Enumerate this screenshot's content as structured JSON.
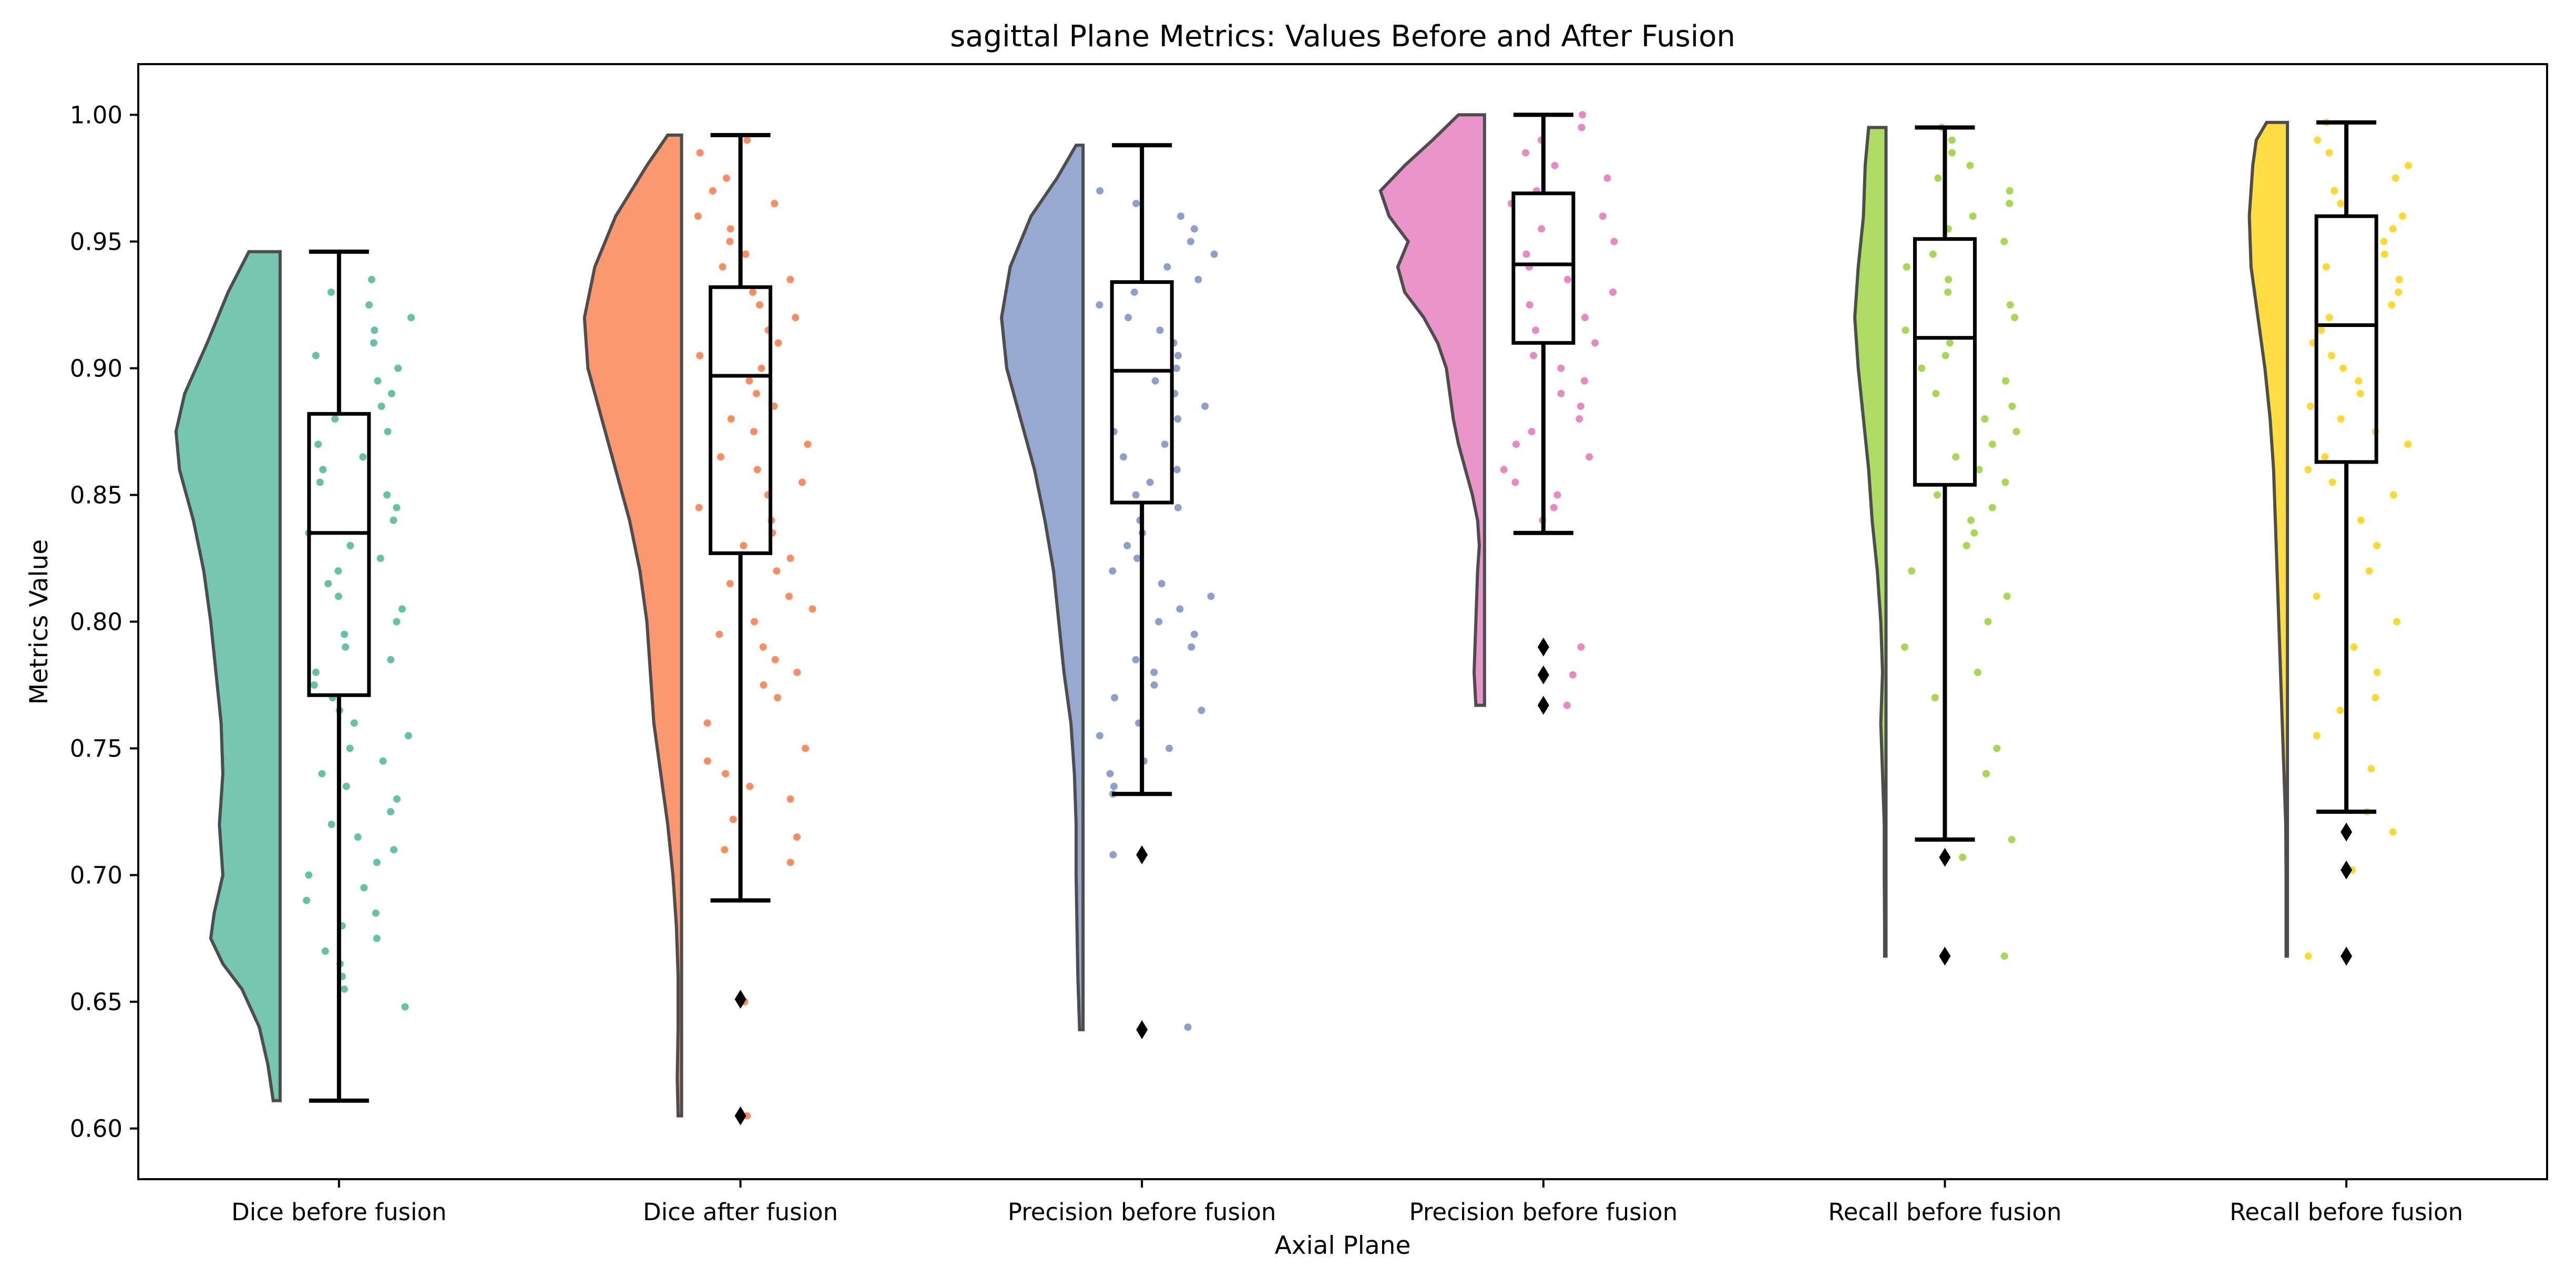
{
  "chart_data": {
    "type": "raincloud",
    "title": "sagittal Plane Metrics: Values Before and After Fusion",
    "xlabel": "Axial Plane",
    "ylabel": "Metrics Value",
    "ylim": [
      0.58,
      1.02
    ],
    "yticks": [
      0.6,
      0.65,
      0.7,
      0.75,
      0.8,
      0.85,
      0.9,
      0.95,
      1.0
    ],
    "grid": false,
    "categories": [
      "Dice before fusion",
      "Dice after fusion",
      "Precision before fusion",
      "Precision before fusion",
      "Recall before fusion",
      "Recall before fusion"
    ],
    "groups": [
      {
        "label": "Dice before fusion",
        "color": "#66c2a5",
        "min": 0.611,
        "q1": 0.771,
        "median": 0.835,
        "q3": 0.882,
        "max": 0.946,
        "outliers": [],
        "violin": [
          [
            0.946,
            0.18
          ],
          [
            0.93,
            0.3
          ],
          [
            0.91,
            0.42
          ],
          [
            0.89,
            0.55
          ],
          [
            0.875,
            0.6
          ],
          [
            0.86,
            0.58
          ],
          [
            0.84,
            0.5
          ],
          [
            0.82,
            0.44
          ],
          [
            0.8,
            0.4
          ],
          [
            0.78,
            0.37
          ],
          [
            0.76,
            0.34
          ],
          [
            0.74,
            0.33
          ],
          [
            0.72,
            0.35
          ],
          [
            0.7,
            0.33
          ],
          [
            0.685,
            0.38
          ],
          [
            0.675,
            0.4
          ],
          [
            0.665,
            0.33
          ],
          [
            0.655,
            0.22
          ],
          [
            0.64,
            0.12
          ],
          [
            0.625,
            0.07
          ],
          [
            0.611,
            0.04
          ]
        ],
        "points": [
          0.935,
          0.93,
          0.925,
          0.92,
          0.915,
          0.91,
          0.905,
          0.9,
          0.895,
          0.89,
          0.885,
          0.88,
          0.875,
          0.87,
          0.865,
          0.86,
          0.855,
          0.85,
          0.845,
          0.84,
          0.835,
          0.83,
          0.825,
          0.82,
          0.815,
          0.81,
          0.805,
          0.8,
          0.795,
          0.79,
          0.785,
          0.78,
          0.775,
          0.77,
          0.765,
          0.76,
          0.755,
          0.75,
          0.745,
          0.74,
          0.735,
          0.73,
          0.725,
          0.72,
          0.715,
          0.71,
          0.705,
          0.7,
          0.695,
          0.69,
          0.685,
          0.68,
          0.675,
          0.67,
          0.665,
          0.66,
          0.655,
          0.648
        ]
      },
      {
        "label": "Dice after fusion",
        "color": "#fc8d62",
        "min": 0.69,
        "q1": 0.827,
        "median": 0.897,
        "q3": 0.932,
        "max": 0.992,
        "outliers": [
          0.651,
          0.605
        ],
        "violin": [
          [
            0.992,
            0.08
          ],
          [
            0.98,
            0.2
          ],
          [
            0.96,
            0.38
          ],
          [
            0.94,
            0.5
          ],
          [
            0.92,
            0.56
          ],
          [
            0.9,
            0.54
          ],
          [
            0.88,
            0.46
          ],
          [
            0.86,
            0.38
          ],
          [
            0.84,
            0.3
          ],
          [
            0.82,
            0.24
          ],
          [
            0.8,
            0.2
          ],
          [
            0.78,
            0.18
          ],
          [
            0.76,
            0.16
          ],
          [
            0.74,
            0.12
          ],
          [
            0.72,
            0.08
          ],
          [
            0.7,
            0.05
          ],
          [
            0.68,
            0.03
          ],
          [
            0.66,
            0.02
          ],
          [
            0.64,
            0.02
          ],
          [
            0.62,
            0.025
          ],
          [
            0.605,
            0.02
          ]
        ],
        "points": [
          0.99,
          0.985,
          0.975,
          0.97,
          0.965,
          0.96,
          0.955,
          0.95,
          0.945,
          0.94,
          0.935,
          0.93,
          0.925,
          0.92,
          0.915,
          0.91,
          0.905,
          0.9,
          0.895,
          0.89,
          0.885,
          0.88,
          0.875,
          0.87,
          0.865,
          0.86,
          0.855,
          0.85,
          0.845,
          0.84,
          0.835,
          0.83,
          0.825,
          0.82,
          0.815,
          0.81,
          0.805,
          0.8,
          0.795,
          0.79,
          0.785,
          0.78,
          0.775,
          0.77,
          0.76,
          0.75,
          0.745,
          0.74,
          0.735,
          0.73,
          0.722,
          0.715,
          0.71,
          0.705,
          0.65,
          0.605
        ]
      },
      {
        "label": "Precision before fusion",
        "color": "#8da0cb",
        "min": 0.732,
        "q1": 0.847,
        "median": 0.899,
        "q3": 0.934,
        "max": 0.988,
        "outliers": [
          0.708,
          0.639
        ],
        "violin": [
          [
            0.988,
            0.04
          ],
          [
            0.975,
            0.15
          ],
          [
            0.96,
            0.3
          ],
          [
            0.94,
            0.42
          ],
          [
            0.92,
            0.47
          ],
          [
            0.9,
            0.44
          ],
          [
            0.88,
            0.36
          ],
          [
            0.86,
            0.28
          ],
          [
            0.84,
            0.22
          ],
          [
            0.82,
            0.17
          ],
          [
            0.8,
            0.14
          ],
          [
            0.78,
            0.11
          ],
          [
            0.76,
            0.07
          ],
          [
            0.74,
            0.05
          ],
          [
            0.72,
            0.04
          ],
          [
            0.7,
            0.04
          ],
          [
            0.68,
            0.035
          ],
          [
            0.66,
            0.03
          ],
          [
            0.639,
            0.02
          ]
        ],
        "points": [
          0.97,
          0.965,
          0.96,
          0.955,
          0.95,
          0.945,
          0.94,
          0.935,
          0.93,
          0.925,
          0.92,
          0.915,
          0.91,
          0.905,
          0.9,
          0.895,
          0.89,
          0.885,
          0.88,
          0.875,
          0.87,
          0.865,
          0.86,
          0.855,
          0.85,
          0.845,
          0.84,
          0.835,
          0.83,
          0.825,
          0.82,
          0.815,
          0.81,
          0.805,
          0.8,
          0.795,
          0.79,
          0.785,
          0.78,
          0.775,
          0.77,
          0.765,
          0.76,
          0.755,
          0.75,
          0.745,
          0.74,
          0.735,
          0.732,
          0.708,
          0.64
        ]
      },
      {
        "label": "Precision before fusion",
        "color": "#e78ac3",
        "min": 0.835,
        "q1": 0.91,
        "median": 0.941,
        "q3": 0.969,
        "max": 1.0,
        "outliers": [
          0.79,
          0.779,
          0.767
        ],
        "violin": [
          [
            1.0,
            0.15
          ],
          [
            0.99,
            0.3
          ],
          [
            0.98,
            0.46
          ],
          [
            0.97,
            0.6
          ],
          [
            0.96,
            0.55
          ],
          [
            0.95,
            0.44
          ],
          [
            0.94,
            0.5
          ],
          [
            0.93,
            0.46
          ],
          [
            0.92,
            0.35
          ],
          [
            0.91,
            0.27
          ],
          [
            0.9,
            0.22
          ],
          [
            0.89,
            0.2
          ],
          [
            0.88,
            0.18
          ],
          [
            0.87,
            0.15
          ],
          [
            0.86,
            0.11
          ],
          [
            0.85,
            0.07
          ],
          [
            0.84,
            0.04
          ],
          [
            0.83,
            0.03
          ],
          [
            0.82,
            0.04
          ],
          [
            0.8,
            0.05
          ],
          [
            0.78,
            0.06
          ],
          [
            0.767,
            0.05
          ]
        ],
        "points": [
          1.0,
          0.995,
          0.99,
          0.985,
          0.98,
          0.975,
          0.97,
          0.965,
          0.96,
          0.955,
          0.95,
          0.945,
          0.94,
          0.935,
          0.93,
          0.925,
          0.92,
          0.915,
          0.91,
          0.905,
          0.9,
          0.895,
          0.89,
          0.885,
          0.88,
          0.875,
          0.87,
          0.865,
          0.86,
          0.855,
          0.85,
          0.845,
          0.84,
          0.79,
          0.779,
          0.767
        ]
      },
      {
        "label": "Recall before fusion",
        "color": "#a6d854",
        "min": 0.714,
        "q1": 0.854,
        "median": 0.912,
        "q3": 0.951,
        "max": 0.995,
        "outliers": [
          0.707,
          0.668
        ],
        "violin": [
          [
            0.995,
            0.1
          ],
          [
            0.98,
            0.12
          ],
          [
            0.96,
            0.13
          ],
          [
            0.94,
            0.16
          ],
          [
            0.92,
            0.18
          ],
          [
            0.9,
            0.16
          ],
          [
            0.88,
            0.13
          ],
          [
            0.86,
            0.1
          ],
          [
            0.84,
            0.08
          ],
          [
            0.82,
            0.05
          ],
          [
            0.8,
            0.03
          ],
          [
            0.78,
            0.02
          ],
          [
            0.76,
            0.03
          ],
          [
            0.74,
            0.02
          ],
          [
            0.72,
            0.01
          ],
          [
            0.7,
            0.01
          ],
          [
            0.68,
            0.008
          ],
          [
            0.668,
            0.008
          ]
        ],
        "points": [
          0.995,
          0.99,
          0.985,
          0.98,
          0.975,
          0.97,
          0.965,
          0.96,
          0.955,
          0.95,
          0.945,
          0.94,
          0.935,
          0.93,
          0.925,
          0.92,
          0.915,
          0.91,
          0.905,
          0.9,
          0.895,
          0.89,
          0.885,
          0.88,
          0.875,
          0.87,
          0.865,
          0.86,
          0.855,
          0.85,
          0.845,
          0.84,
          0.835,
          0.83,
          0.82,
          0.81,
          0.8,
          0.79,
          0.78,
          0.77,
          0.75,
          0.74,
          0.714,
          0.707,
          0.668
        ]
      },
      {
        "label": "Recall before fusion",
        "color": "#ffd92f",
        "min": 0.725,
        "q1": 0.863,
        "median": 0.917,
        "q3": 0.96,
        "max": 0.997,
        "outliers": [
          0.717,
          0.702,
          0.668
        ],
        "violin": [
          [
            0.997,
            0.12
          ],
          [
            0.99,
            0.18
          ],
          [
            0.98,
            0.2
          ],
          [
            0.96,
            0.22
          ],
          [
            0.94,
            0.21
          ],
          [
            0.92,
            0.17
          ],
          [
            0.9,
            0.13
          ],
          [
            0.88,
            0.1
          ],
          [
            0.86,
            0.08
          ],
          [
            0.84,
            0.07
          ],
          [
            0.82,
            0.06
          ],
          [
            0.8,
            0.05
          ],
          [
            0.78,
            0.04
          ],
          [
            0.76,
            0.03
          ],
          [
            0.74,
            0.02
          ],
          [
            0.72,
            0.01
          ],
          [
            0.7,
            0.008
          ],
          [
            0.668,
            0.008
          ]
        ],
        "points": [
          0.997,
          0.99,
          0.985,
          0.98,
          0.975,
          0.97,
          0.965,
          0.96,
          0.955,
          0.95,
          0.945,
          0.94,
          0.935,
          0.93,
          0.925,
          0.92,
          0.915,
          0.91,
          0.905,
          0.9,
          0.895,
          0.89,
          0.885,
          0.88,
          0.875,
          0.87,
          0.865,
          0.86,
          0.855,
          0.85,
          0.84,
          0.83,
          0.82,
          0.81,
          0.8,
          0.79,
          0.78,
          0.77,
          0.765,
          0.755,
          0.742,
          0.725,
          0.717,
          0.702,
          0.668
        ]
      }
    ]
  }
}
